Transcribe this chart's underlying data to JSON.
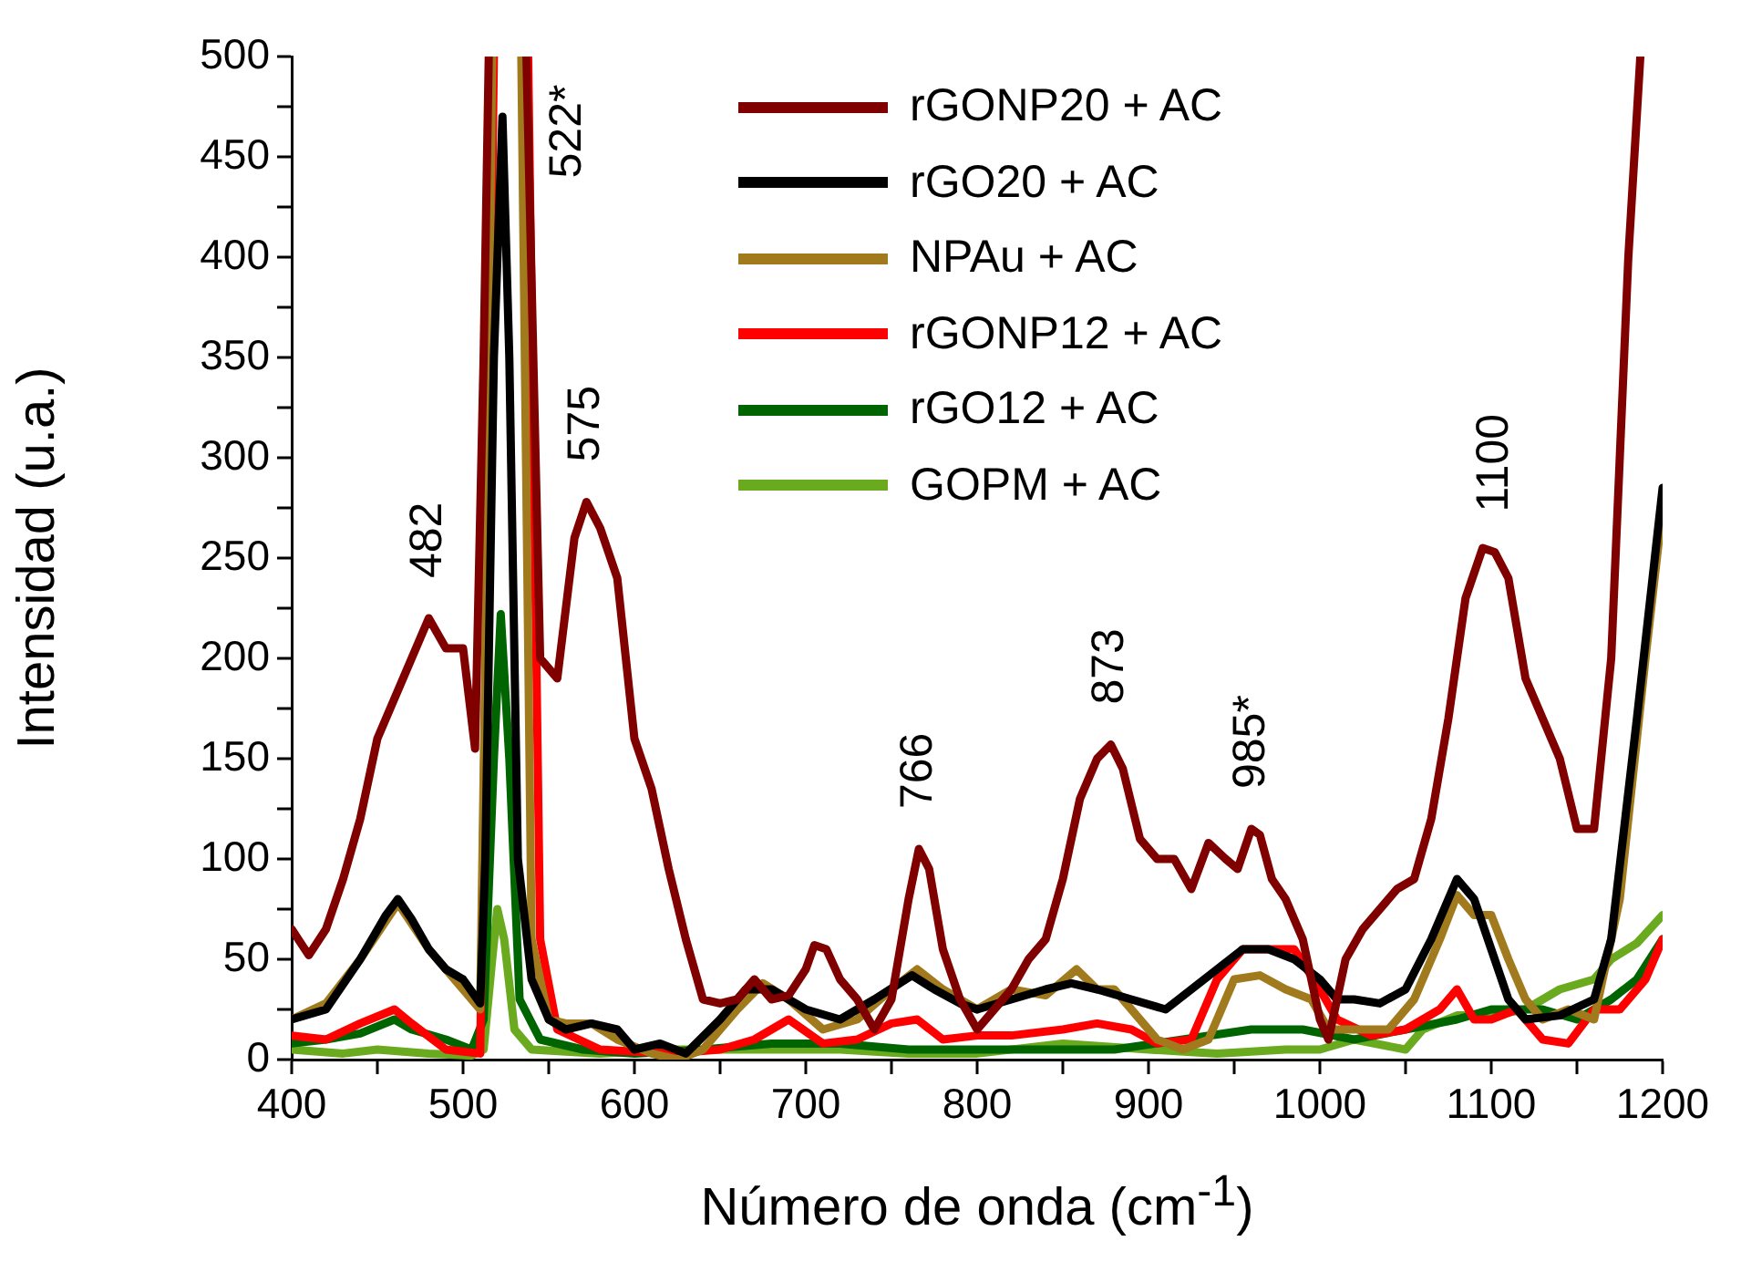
{
  "chart_data": {
    "type": "line",
    "xlabel": "Número de onda (cm$^{-1}$)",
    "ylabel": "Intensidad (u.a.)",
    "xlim": [
      400,
      1200
    ],
    "xticks": [
      400,
      {
        "value": 450,
        "label": null
      },
      500,
      {
        "value": 550,
        "label": null
      },
      600,
      {
        "value": 650,
        "label": null
      },
      700,
      {
        "value": 750,
        "label": null
      },
      800,
      {
        "value": 850,
        "label": null
      },
      900,
      {
        "value": 950,
        "label": null
      },
      1000,
      {
        "value": 1050,
        "label": null
      },
      1100,
      {
        "value": 1150,
        "label": null
      },
      1200
    ],
    "ylim": [
      0,
      500
    ],
    "yticks": [
      0,
      {
        "value": 25,
        "label": null
      },
      50,
      {
        "value": 75,
        "label": null
      },
      100,
      {
        "value": 125,
        "label": null
      },
      150,
      {
        "value": 175,
        "label": null
      },
      200,
      {
        "value": 225,
        "label": null
      },
      250,
      {
        "value": 275,
        "label": null
      },
      300,
      {
        "value": 325,
        "label": null
      },
      350,
      {
        "value": 375,
        "label": null
      },
      400,
      {
        "value": 425,
        "label": null
      },
      450,
      {
        "value": 475,
        "label": null
      },
      500
    ],
    "legend": "top right",
    "marker": "none",
    "line_style": "solid",
    "grid": false,
    "annotations": [
      {
        "text": "482",
        "x": 480,
        "y": 220
      },
      {
        "text": "522*",
        "x": 523,
        "y": 470
      },
      {
        "text": "575",
        "x": 572,
        "y": 278
      },
      {
        "text": "766",
        "x": 766,
        "y": 105
      },
      {
        "text": "873",
        "x": 878,
        "y": 157
      },
      {
        "text": "985*",
        "x": 960,
        "y": 115
      },
      {
        "text": "1100",
        "x": 1102,
        "y": 253
      }
    ],
    "series": [
      {
        "name": "rGONP20 + AC",
        "color": "#800000",
        "x": [
          400,
          410,
          420,
          430,
          440,
          450,
          460,
          470,
          480,
          490,
          500,
          507,
          512,
          515,
          526,
          537,
          545,
          555,
          565,
          572,
          580,
          590,
          600,
          610,
          620,
          630,
          640,
          650,
          660,
          670,
          680,
          690,
          700,
          705,
          712,
          720,
          730,
          740,
          750,
          760,
          766,
          772,
          780,
          790,
          800,
          810,
          820,
          830,
          840,
          850,
          860,
          870,
          878,
          885,
          895,
          905,
          915,
          925,
          935,
          945,
          952,
          960,
          965,
          972,
          980,
          990,
          1000,
          1005,
          1015,
          1025,
          1035,
          1045,
          1055,
          1065,
          1075,
          1085,
          1095,
          1102,
          1110,
          1120,
          1130,
          1140,
          1150,
          1160,
          1170,
          1180,
          1187
        ],
        "values": [
          65,
          52,
          65,
          90,
          120,
          160,
          180,
          200,
          220,
          205,
          205,
          155,
          350,
          500,
          null,
          500,
          200,
          190,
          260,
          278,
          265,
          240,
          160,
          135,
          95,
          60,
          30,
          28,
          30,
          40,
          30,
          32,
          45,
          57,
          55,
          40,
          30,
          15,
          30,
          80,
          105,
          95,
          55,
          30,
          15,
          25,
          35,
          50,
          60,
          90,
          130,
          150,
          157,
          145,
          110,
          100,
          100,
          85,
          108,
          100,
          95,
          115,
          112,
          90,
          80,
          60,
          20,
          10,
          50,
          65,
          75,
          85,
          90,
          120,
          170,
          230,
          255,
          253,
          240,
          190,
          170,
          150,
          115,
          115,
          200,
          400,
          500
        ]
      },
      {
        "name": "rGO20 + AC",
        "color": "#000000",
        "x": [
          400,
          420,
          440,
          455,
          462,
          470,
          480,
          490,
          500,
          510,
          513,
          518,
          523,
          527,
          532,
          540,
          550,
          560,
          575,
          590,
          600,
          615,
          630,
          650,
          665,
          680,
          700,
          720,
          740,
          762,
          775,
          790,
          800,
          820,
          840,
          855,
          870,
          890,
          910,
          925,
          940,
          955,
          970,
          985,
          1000,
          1010,
          1020,
          1035,
          1050,
          1065,
          1080,
          1090,
          1100,
          1110,
          1120,
          1140,
          1160,
          1170,
          1185,
          1200
        ],
        "values": [
          20,
          25,
          50,
          72,
          80,
          70,
          55,
          45,
          40,
          28,
          100,
          350,
          470,
          350,
          100,
          40,
          20,
          15,
          18,
          15,
          5,
          8,
          3,
          20,
          35,
          35,
          25,
          20,
          30,
          42,
          35,
          28,
          25,
          30,
          35,
          38,
          35,
          30,
          25,
          35,
          45,
          55,
          55,
          50,
          40,
          30,
          30,
          28,
          35,
          60,
          90,
          80,
          55,
          30,
          20,
          22,
          30,
          60,
          170,
          285
        ]
      },
      {
        "name": "NPAu + AC",
        "color": "#a07a1c",
        "x": [
          400,
          420,
          440,
          462,
          480,
          500,
          510,
          513,
          517,
          526,
          534,
          540,
          550,
          560,
          575,
          590,
          610,
          625,
          640,
          660,
          675,
          690,
          710,
          730,
          750,
          765,
          780,
          800,
          820,
          840,
          858,
          870,
          880,
          895,
          905,
          920,
          935,
          950,
          965,
          980,
          995,
          1005,
          1020,
          1040,
          1055,
          1070,
          1080,
          1090,
          1100,
          1110,
          1120,
          1130,
          1145,
          1160,
          1175,
          1190,
          1200
        ],
        "values": [
          20,
          28,
          50,
          78,
          55,
          35,
          25,
          200,
          500,
          null,
          500,
          60,
          20,
          18,
          18,
          10,
          3,
          0,
          5,
          25,
          38,
          30,
          15,
          20,
          35,
          45,
          35,
          25,
          35,
          32,
          45,
          35,
          35,
          20,
          10,
          5,
          10,
          40,
          42,
          35,
          30,
          15,
          15,
          15,
          30,
          60,
          82,
          72,
          72,
          50,
          30,
          20,
          25,
          20,
          80,
          200,
          275
        ]
      },
      {
        "name": "rGONP12 + AC",
        "color": "#ff0000",
        "x": [
          400,
          420,
          440,
          460,
          470,
          490,
          510,
          515,
          518,
          528,
          538,
          545,
          555,
          580,
          620,
          650,
          670,
          690,
          710,
          730,
          750,
          765,
          780,
          800,
          820,
          850,
          870,
          890,
          905,
          925,
          940,
          955,
          970,
          985,
          1000,
          1010,
          1030,
          1050,
          1070,
          1080,
          1090,
          1100,
          1115,
          1130,
          1145,
          1160,
          1175,
          1190,
          1200
        ],
        "values": [
          12,
          10,
          18,
          25,
          18,
          5,
          3,
          300,
          500,
          null,
          500,
          60,
          15,
          5,
          3,
          5,
          10,
          20,
          8,
          10,
          18,
          20,
          10,
          12,
          12,
          15,
          18,
          15,
          8,
          10,
          40,
          55,
          55,
          55,
          35,
          20,
          12,
          15,
          25,
          35,
          20,
          20,
          25,
          10,
          8,
          25,
          25,
          40,
          60
        ]
      },
      {
        "name": "rGO12 + AC",
        "color": "#006400",
        "x": [
          400,
          420,
          440,
          460,
          470,
          490,
          505,
          512,
          518,
          522,
          527,
          533,
          545,
          570,
          600,
          640,
          680,
          720,
          760,
          800,
          840,
          880,
          920,
          960,
          990,
          1020,
          1050,
          1080,
          1100,
          1130,
          1150,
          1170,
          1185,
          1200
        ],
        "values": [
          8,
          10,
          13,
          20,
          15,
          10,
          5,
          20,
          150,
          222,
          150,
          30,
          10,
          5,
          3,
          5,
          8,
          8,
          5,
          5,
          5,
          5,
          10,
          15,
          15,
          10,
          15,
          20,
          25,
          25,
          20,
          30,
          40,
          60
        ]
      },
      {
        "name": "GOPM + AC",
        "color": "#6aaa1e",
        "x": [
          400,
          430,
          450,
          480,
          505,
          512,
          517,
          520,
          524,
          530,
          540,
          580,
          620,
          680,
          720,
          760,
          800,
          850,
          900,
          940,
          980,
          1000,
          1020,
          1050,
          1060,
          1080,
          1100,
          1120,
          1140,
          1160,
          1170,
          1185,
          1200
        ],
        "values": [
          5,
          3,
          5,
          3,
          2,
          5,
          50,
          75,
          60,
          15,
          5,
          3,
          5,
          5,
          5,
          3,
          3,
          8,
          5,
          3,
          5,
          5,
          10,
          5,
          15,
          22,
          22,
          25,
          35,
          40,
          50,
          58,
          72
        ]
      }
    ]
  }
}
